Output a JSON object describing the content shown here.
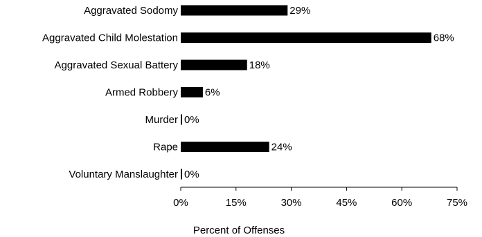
{
  "chart_data": {
    "type": "bar",
    "orientation": "horizontal",
    "categories": [
      "Aggravated Sodomy",
      "Aggravated Child Molestation",
      "Aggravated Sexual Battery",
      "Armed Robbery",
      "Murder",
      "Rape",
      "Voluntary Manslaughter"
    ],
    "values": [
      29,
      68,
      18,
      6,
      0,
      24,
      0
    ],
    "data_labels": [
      "29%",
      "68%",
      "18%",
      "6%",
      "0%",
      "24%",
      "0%"
    ],
    "xlabel": "Percent of Offenses",
    "ylabel": "",
    "xlim": [
      0,
      75
    ],
    "xticks": [
      0,
      15,
      30,
      45,
      60,
      75
    ],
    "xtick_labels": [
      "0%",
      "15%",
      "30%",
      "45%",
      "60%",
      "75%"
    ],
    "bar_color": "#000000",
    "grid": false,
    "legend": false
  }
}
